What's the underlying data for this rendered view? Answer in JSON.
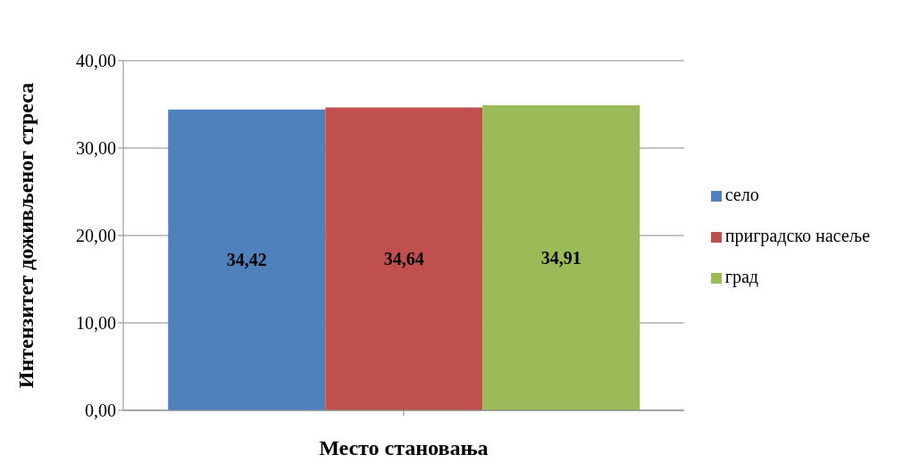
{
  "chart_data": {
    "type": "bar",
    "xlabel": "Место становања",
    "ylabel": "Интензитет  доживљеног стреса",
    "categories": [
      null
    ],
    "series": [
      {
        "name": "село",
        "color": "#4f81bd",
        "values": [
          34.42
        ],
        "value_labels": [
          "34,42"
        ]
      },
      {
        "name": "приградско насеље",
        "color": "#c0504d",
        "values": [
          34.64
        ],
        "value_labels": [
          "34,64"
        ]
      },
      {
        "name": "град",
        "color": "#9bbb59",
        "values": [
          34.91
        ],
        "value_labels": [
          "34,91"
        ]
      }
    ],
    "ylim": [
      0,
      40
    ],
    "yticks": [
      {
        "value": 0,
        "label": "0,00"
      },
      {
        "value": 10,
        "label": "10,00"
      },
      {
        "value": 20,
        "label": "20,00"
      },
      {
        "value": 30,
        "label": "30,00"
      },
      {
        "value": 40,
        "label": "40,00"
      }
    ],
    "grid": "y",
    "legend": "right"
  }
}
